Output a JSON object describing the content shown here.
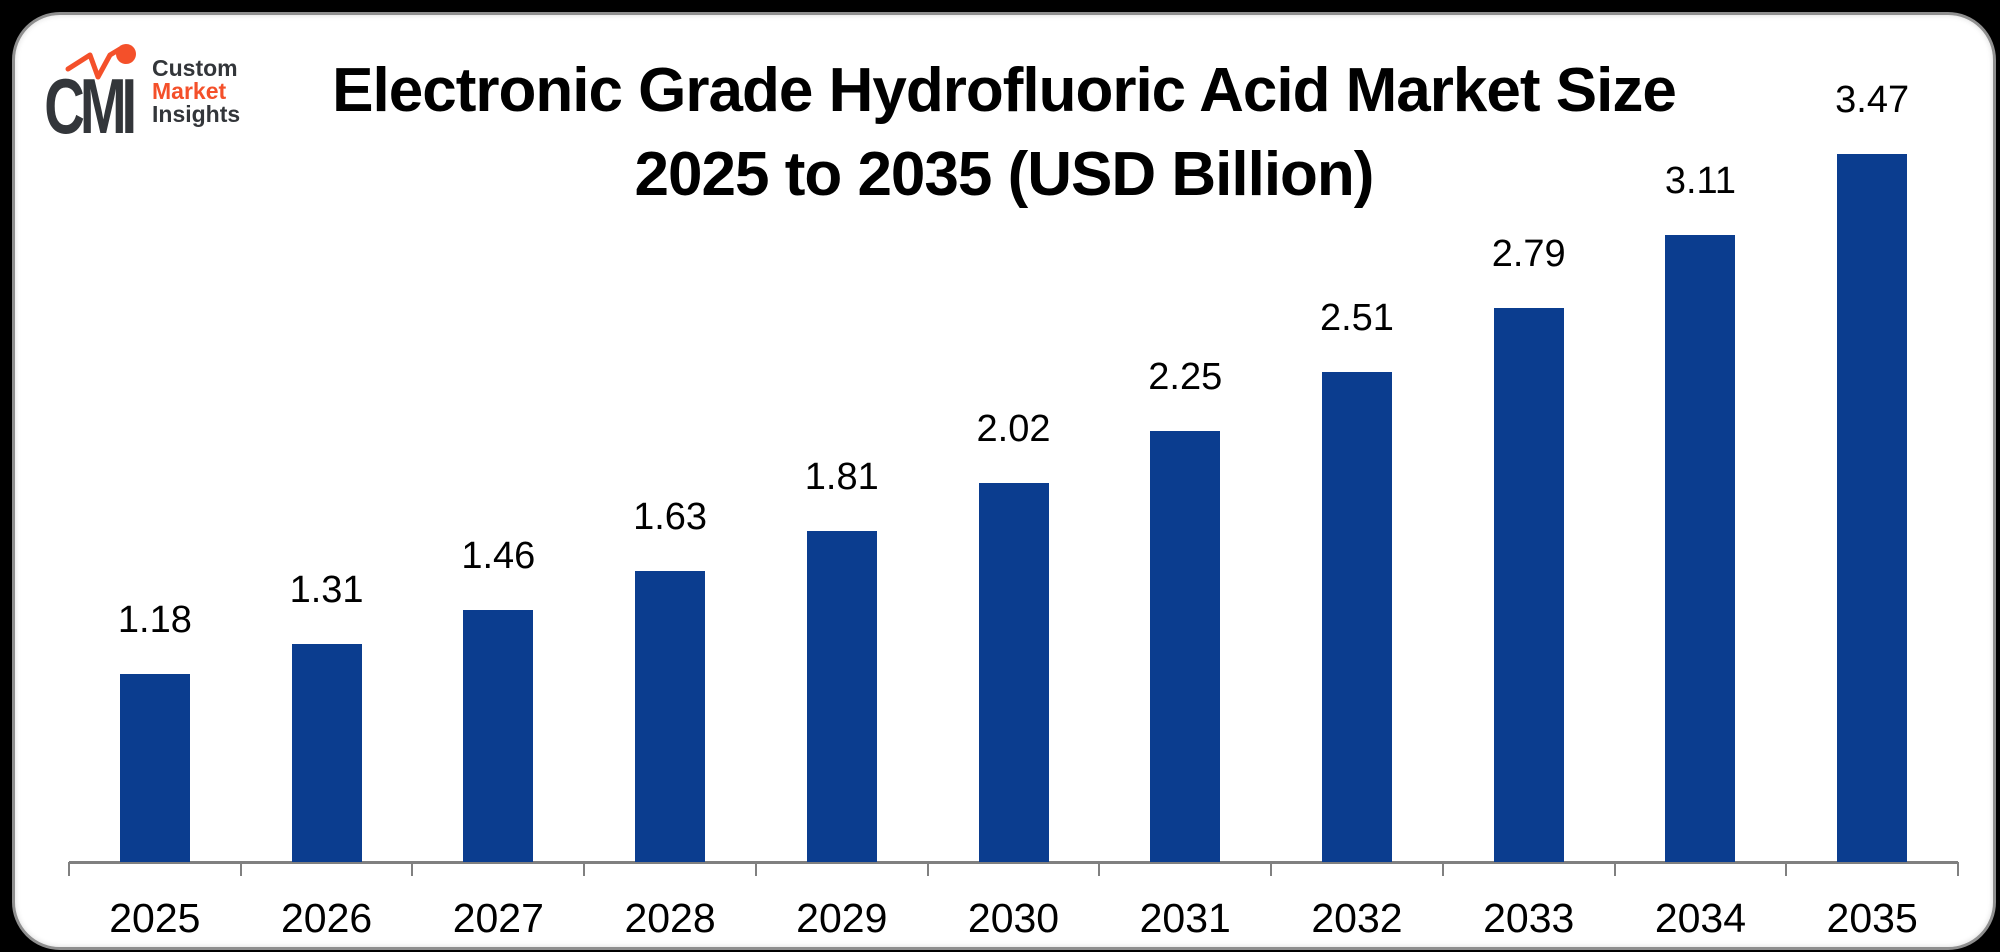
{
  "logo": {
    "monogram": "CMI",
    "company_lines": [
      {
        "text": "Custom",
        "color": "#33363a"
      },
      {
        "text": "Market",
        "color": "#f4502a"
      },
      {
        "text": "Insights",
        "color": "#33363a"
      }
    ],
    "accent_color": "#f4502a",
    "letter_color": "#33363a"
  },
  "chart_data": {
    "type": "bar",
    "title_line1": "Electronic Grade Hydrofluoric Acid Market Size",
    "title_line2": "2025 to 2035 (USD Billion)",
    "unit": "USD Billion",
    "categories": [
      "2025",
      "2026",
      "2027",
      "2028",
      "2029",
      "2030",
      "2031",
      "2032",
      "2033",
      "2034",
      "2035"
    ],
    "values": [
      1.18,
      1.31,
      1.46,
      1.63,
      1.81,
      2.02,
      2.25,
      2.51,
      2.79,
      3.11,
      3.47
    ],
    "value_labels": [
      "1.18",
      "1.31",
      "1.46",
      "1.63",
      "1.81",
      "2.02",
      "2.25",
      "2.51",
      "2.79",
      "3.11",
      "3.47"
    ],
    "bar_color": "#0b3d8f",
    "axis_color": "#808080",
    "label_color": "#000000",
    "background_color": "#ffffff",
    "gridlines": false,
    "legend": false,
    "y_axis_labels_visible": false
  }
}
